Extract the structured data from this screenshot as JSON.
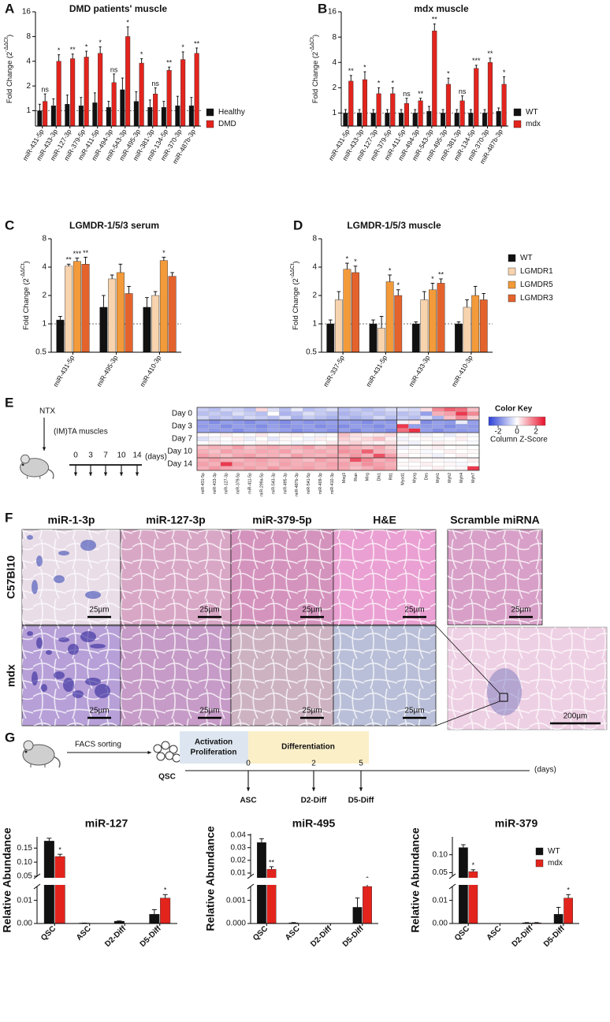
{
  "panel_letters": [
    "A",
    "B",
    "C",
    "D",
    "E",
    "F",
    "G"
  ],
  "chart_data": [
    {
      "type": "bar",
      "log": true,
      "title": "DMD patients' muscle",
      "y_label": [
        "Fold Change (2",
        "-ΔΔCt",
        ")"
      ],
      "categories": [
        "miR-431-5p",
        "miR-433-3p",
        "miR-127-3p",
        "miR-379-5p",
        "miR-411-5p",
        "miR-494-3p",
        "miR-543-3p",
        "miR-495-3p",
        "miR-381-3p",
        "miR-134-5p",
        "miR-370-3p",
        "miR-487b-3p"
      ],
      "ylim": [
        0.65,
        16
      ],
      "yticks": [
        1,
        2,
        4,
        8,
        16
      ],
      "reference_line": 1,
      "legend": true,
      "series": [
        {
          "name": "Healthy",
          "color": "#111111",
          "values": [
            1.0,
            1.15,
            1.2,
            1.15,
            1.25,
            1.1,
            1.8,
            1.3,
            1.1,
            1.1,
            1.15,
            1.15
          ],
          "errors": [
            0.2,
            0.25,
            0.35,
            0.3,
            0.4,
            0.2,
            0.7,
            0.4,
            0.25,
            0.2,
            0.35,
            0.3
          ]
        },
        {
          "name": "DMD",
          "color": "#e3241d",
          "values": [
            1.3,
            4.0,
            4.3,
            4.5,
            5.0,
            2.2,
            8.0,
            3.8,
            1.6,
            3.1,
            4.2,
            5.0
          ],
          "errors": [
            0.3,
            0.8,
            0.6,
            0.8,
            1.0,
            0.6,
            2.5,
            0.5,
            0.3,
            0.3,
            1.0,
            0.8
          ],
          "significance": [
            "ns",
            "*",
            "**",
            "*",
            "*",
            "ns",
            "*",
            "*",
            "ns",
            "**",
            "*",
            "**"
          ]
        }
      ]
    },
    {
      "type": "bar",
      "log": true,
      "title": "mdx muscle",
      "y_label": [
        "Fold Change (2",
        "-ΔΔCt",
        ")"
      ],
      "categories": [
        "miR-431-5p",
        "miR-433-3p",
        "miR-127-3p",
        "miR-379-5p",
        "miR-411-5p",
        "miR-494-3p",
        "miR-543-3p",
        "miR-495-3p",
        "miR-381-3p",
        "miR-134-5p",
        "miR-370-3p",
        "miR-487b-3p"
      ],
      "ylim": [
        0.7,
        16
      ],
      "yticks": [
        1,
        2,
        4,
        8,
        16
      ],
      "reference_line": 1,
      "legend": true,
      "series": [
        {
          "name": "WT",
          "color": "#111111",
          "values": [
            1,
            1,
            1,
            1,
            1,
            1,
            1.05,
            1,
            1,
            1,
            1,
            1.05
          ],
          "errors": [
            0.1,
            0.1,
            0.1,
            0.1,
            0.1,
            0.1,
            0.15,
            0.1,
            0.1,
            0.1,
            0.1,
            0.1
          ]
        },
        {
          "name": "mdx",
          "color": "#e3241d",
          "values": [
            2.4,
            2.5,
            1.7,
            1.7,
            1.3,
            1.4,
            9.5,
            2.2,
            1.4,
            3.4,
            4.0,
            2.2
          ],
          "errors": [
            0.4,
            0.6,
            0.3,
            0.3,
            0.2,
            0.1,
            2.0,
            0.4,
            0.2,
            0.3,
            0.5,
            0.5
          ],
          "significance": [
            "**",
            "*",
            "*",
            "*",
            "ns",
            "**",
            "**",
            "*",
            "ns",
            "***",
            "**",
            "*"
          ]
        }
      ]
    },
    {
      "type": "bar",
      "log": true,
      "title": "LGMDR-1/5/3 serum",
      "y_label": [
        "Fold Change (2",
        "-ΔΔCt",
        ")"
      ],
      "categories": [
        "miR-431-5p",
        "miR-495-3p",
        "miR-410-3p"
      ],
      "ylim": [
        0.5,
        8
      ],
      "yticks": [
        0.5,
        1,
        2,
        4,
        8
      ],
      "reference_line": 1,
      "legend": false,
      "series": [
        {
          "color": "#111111",
          "values": [
            1.1,
            1.5,
            1.5
          ],
          "errors": [
            0.1,
            0.5,
            0.4
          ]
        },
        {
          "color": "#f7d3ae",
          "values": [
            4.1,
            3.0,
            2.0
          ],
          "errors": [
            0.2,
            0.3,
            0.2
          ],
          "significance": [
            "**",
            null,
            null
          ]
        },
        {
          "color": "#f39a3a",
          "values": [
            4.6,
            3.5,
            4.7
          ],
          "errors": [
            0.4,
            0.8,
            0.4
          ],
          "significance": [
            "***",
            null,
            "*"
          ]
        },
        {
          "color": "#e4632c",
          "values": [
            4.3,
            2.1,
            3.2
          ],
          "errors": [
            0.8,
            0.4,
            0.3
          ],
          "significance": [
            "**",
            null,
            null
          ]
        }
      ]
    },
    {
      "type": "bar",
      "log": true,
      "title": "LGMDR-1/5/3 muscle",
      "y_label": [
        "Fold Change (2",
        "-ΔΔCt",
        ")"
      ],
      "categories": [
        "miR-337-5p",
        "miR-431-5p",
        "miR-433-3p",
        "miR-410-3p"
      ],
      "ylim": [
        0.5,
        8
      ],
      "yticks": [
        0.5,
        1,
        2,
        4,
        8
      ],
      "reference_line": 1,
      "legend": true,
      "series": [
        {
          "name": "WT",
          "color": "#111111",
          "values": [
            1,
            1,
            1,
            1
          ],
          "errors": [
            0.1,
            0.1,
            0.05,
            0.05
          ]
        },
        {
          "name": "LGMDR1",
          "color": "#f7d3ae",
          "values": [
            1.8,
            0.9,
            1.8,
            1.5
          ],
          "errors": [
            0.4,
            0.3,
            0.4,
            0.3
          ]
        },
        {
          "name": "LGMDR5",
          "color": "#f39a3a",
          "values": [
            3.8,
            2.8,
            2.3,
            2.0
          ],
          "errors": [
            0.6,
            0.5,
            0.4,
            0.5
          ],
          "significance": [
            "*",
            "*",
            "*",
            null
          ]
        },
        {
          "name": "LGMDR3",
          "color": "#e4632c",
          "values": [
            3.5,
            2.0,
            2.7,
            1.8
          ],
          "errors": [
            0.6,
            0.3,
            0.3,
            0.3
          ],
          "significance": [
            "*",
            "*",
            "**",
            null
          ]
        }
      ]
    },
    {
      "type": "heatmap",
      "row_groups": [
        "Day 0",
        "Day 3",
        "Day 7",
        "Day 10",
        "Day 14"
      ],
      "columns": [
        "miR-431-5p",
        "miR-433-3p",
        "miR-127-3p",
        "miR-379-5p",
        "miR-411-5p",
        "miR-299a-5p",
        "miR-543-3p",
        "miR-495-3p",
        "miR-487b-3p",
        "miR-541-5p",
        "miR-409-3p",
        "miR-410-3p",
        "Meg3",
        "Rian",
        "Mirg",
        "Dlk1",
        "Rtl1",
        "Myod1",
        "Myog",
        "Des",
        "Myh1",
        "Myh2",
        "Myh4",
        "Myh7"
      ],
      "clim": [
        -3,
        3
      ],
      "colorbar_ticks": [
        -2,
        0,
        2
      ],
      "legend_title": "Color Key",
      "legend_subtitle": "Column Z-Score",
      "values": [
        [
          -0.8,
          -1,
          -0.6,
          -0.7,
          -1,
          0.5,
          -0.5,
          -1,
          -0.3,
          -1,
          -0.8,
          -0.5,
          -1,
          -0.8,
          -1,
          -0.8,
          -0.5,
          -0.5,
          -0.6,
          0.4,
          1.5,
          2,
          1.8,
          0.8
        ],
        [
          -1,
          -0.8,
          -1,
          -0.5,
          -0.8,
          -1,
          0,
          -1.2,
          -1,
          -0.5,
          -0.8,
          -1,
          -1.2,
          -1,
          -0.8,
          -1,
          -0.8,
          -1,
          -0.8,
          -1.5,
          1,
          1.2,
          2.5,
          1.5
        ],
        [
          -0.6,
          -1,
          -0.8,
          -1,
          -0.6,
          -0.8,
          -1,
          -0.5,
          -1.2,
          -0.8,
          -1,
          -1.2,
          -1,
          -1.2,
          -1,
          -0.6,
          -1,
          -0.8,
          -1,
          -0.5,
          -1.2,
          0.8,
          1.5,
          0.6
        ],
        [
          -1.5,
          -1.8,
          -1.5,
          -1.6,
          -1.8,
          -1.5,
          -1.6,
          -1.8,
          -1.5,
          -1.7,
          -1.6,
          -1.5,
          -1.5,
          -1.6,
          -1.8,
          -1.5,
          -1.6,
          -0.2,
          0.3,
          -1.8,
          -1.5,
          -1.6,
          -0.3,
          -1.5
        ],
        [
          -1.6,
          -1.5,
          -1.8,
          -1.5,
          -1.6,
          -1.8,
          -1.5,
          -1.7,
          -1.6,
          -1.5,
          -1.8,
          -1.6,
          -1.8,
          -1.5,
          -1.6,
          -1.8,
          -1.5,
          2.5,
          -1.5,
          -1.6,
          -1.5,
          -1.8,
          -1.5,
          -1.6
        ],
        [
          -1.4,
          -1.6,
          -1.5,
          -1.8,
          -1.5,
          -1.6,
          -1.4,
          -1.5,
          -1.8,
          -1.6,
          -1.5,
          -1.7,
          -1.5,
          -1.8,
          -1.5,
          -1.6,
          -1.8,
          1.8,
          2.6,
          -1.5,
          -1.8,
          -1.5,
          -1.6,
          -1.5
        ],
        [
          0.1,
          0,
          0.2,
          0,
          -0.1,
          0.3,
          0,
          0.1,
          0.2,
          0,
          -0.2,
          0.1,
          0.8,
          0.4,
          0.2,
          0.3,
          0.5,
          0,
          0.2,
          -0.2,
          0,
          -0.3,
          0.1,
          -0.1
        ],
        [
          -0.5,
          -0.2,
          0,
          0.2,
          -0.3,
          0,
          -0.4,
          0.1,
          0,
          -0.2,
          0.2,
          0,
          0.6,
          0.3,
          0.5,
          0.8,
          0.2,
          -0.2,
          0,
          0.1,
          -0.1,
          0,
          0.2,
          0
        ],
        [
          0,
          0.2,
          -0.1,
          0.1,
          0,
          0.2,
          0.1,
          0,
          -0.2,
          0.1,
          0,
          0.3,
          0.4,
          0.6,
          0.3,
          0.2,
          0.4,
          0.1,
          -0.2,
          0,
          0.2,
          0.1,
          0,
          -0.1
        ],
        [
          0.8,
          1,
          0.9,
          1.2,
          0.8,
          1,
          1.1,
          0.9,
          1,
          1.2,
          0.8,
          1,
          1.2,
          1,
          0.8,
          1.1,
          0.6,
          -0.2,
          0,
          0.1,
          0.2,
          0,
          0.1,
          0
        ],
        [
          1,
          0.8,
          1.2,
          1,
          0.9,
          1.1,
          1,
          1.2,
          0.8,
          1,
          1.1,
          0.9,
          1.4,
          1.2,
          2,
          1,
          0.8,
          0,
          0.1,
          -0.1,
          0,
          0.2,
          0,
          0.1
        ],
        [
          1.2,
          1,
          0.8,
          1.1,
          1.2,
          0.9,
          1,
          0.8,
          1.2,
          1,
          0.9,
          1.1,
          1,
          1.3,
          1,
          2.2,
          1.2,
          0.2,
          0,
          0.1,
          -0.2,
          0,
          0.2,
          0
        ],
        [
          1,
          1.2,
          1,
          0.9,
          1.1,
          1.2,
          1,
          1.1,
          1,
          0.8,
          1.2,
          1,
          1,
          2.2,
          1.5,
          1,
          1.2,
          0,
          0.2,
          0,
          0.1,
          -0.1,
          0,
          0.2
        ],
        [
          1.2,
          1,
          2.5,
          1.2,
          1,
          1.1,
          0.9,
          1.2,
          1,
          1.1,
          1,
          1.2,
          1.2,
          1,
          1.4,
          1.2,
          1,
          0.1,
          0,
          0.2,
          0,
          0.1,
          -0.1,
          0
        ],
        [
          1,
          1.3,
          1.1,
          1,
          1.2,
          1,
          1.3,
          1,
          1.1,
          1.2,
          1,
          1.1,
          1.1,
          0.8,
          1,
          1.3,
          1.1,
          0,
          0.1,
          0,
          0.2,
          0,
          0.1,
          2.5
        ]
      ]
    },
    {
      "type": "broken-bar",
      "title": "miR-127",
      "y_label": "Relative Abundance",
      "categories": [
        "QSC",
        "ASC",
        "D2-Diff",
        "D5-Diff"
      ],
      "ylim_lower": [
        0,
        0.016
      ],
      "yticks_lower": [
        {
          "value": 0,
          "label": "0.00"
        },
        0.01
      ],
      "ylim_upper": [
        0.05,
        0.19
      ],
      "yticks_upper": [
        0.05,
        {
          "value": 0.1,
          "label": "0.10"
        },
        0.15
      ],
      "legend": false,
      "series": [
        {
          "color": "#111111",
          "values": [
            0.175,
            0.0002,
            0.001,
            0.004
          ],
          "errors": [
            0.01,
            0,
            0.0001,
            0.002
          ]
        },
        {
          "color": "#e3241d",
          "values": [
            0.12,
            0,
            0,
            0.011
          ],
          "errors": [
            0.008,
            0,
            0,
            0.0015
          ],
          "significance": [
            "*",
            null,
            null,
            "*"
          ]
        }
      ]
    },
    {
      "type": "broken-bar",
      "title": "miR-495",
      "y_label": "Relative Abundance",
      "categories": [
        "QSC",
        "ASC",
        "D2-Diff",
        "D5-Diff"
      ],
      "ylim_lower": [
        0,
        0.0016
      ],
      "yticks_lower": [
        {
          "value": 0,
          "label": "0.000"
        },
        0.001
      ],
      "ylim_upper": [
        0.0075,
        0.041
      ],
      "yticks_upper": [
        0.01,
        0.02,
        0.03,
        0.04
      ],
      "legend": false,
      "series": [
        {
          "color": "#111111",
          "values": [
            0.034,
            3e-05,
            0,
            0.0007
          ],
          "errors": [
            0.003,
            1e-05,
            0,
            0.0004
          ]
        },
        {
          "color": "#e3241d",
          "values": [
            0.013,
            0,
            0,
            0.0016
          ],
          "errors": [
            0.002,
            0,
            0,
            0.0002
          ],
          "significance": [
            "**",
            null,
            null,
            "*"
          ]
        }
      ]
    },
    {
      "type": "broken-bar",
      "title": "miR-379",
      "y_label": "Relative Abundance",
      "categories": [
        "QSC",
        "ASC",
        "D2-Diff",
        "D5-Diff"
      ],
      "ylim_lower": [
        0,
        0.016
      ],
      "yticks_lower": [
        {
          "value": 0,
          "label": "0.00"
        },
        0.01
      ],
      "ylim_upper": [
        0.04,
        0.15
      ],
      "yticks_upper": [
        0.05,
        {
          "value": 0.1,
          "label": "0.10"
        }
      ],
      "legend": true,
      "series": [
        {
          "name": "WT",
          "color": "#111111",
          "values": [
            0.12,
            0,
            0.0003,
            0.004
          ],
          "errors": [
            0.008,
            0,
            0.0001,
            0.003
          ]
        },
        {
          "name": "mdx",
          "color": "#e3241d",
          "values": [
            0.053,
            0,
            0.0003,
            0.011
          ],
          "errors": [
            0.005,
            0,
            0.0001,
            0.0015
          ],
          "significance": [
            "*",
            null,
            null,
            "*"
          ]
        }
      ]
    }
  ],
  "panel_e": {
    "treatment": "NTX",
    "target": "(IM)TA muscles",
    "timepoints": [
      0,
      3,
      7,
      10,
      14
    ],
    "unit": "(days)"
  },
  "panel_f": {
    "columns": [
      "miR-1-3p",
      "miR-127-3p",
      "miR-379-5p",
      "H&E",
      "Scramble miRNA"
    ],
    "rows": [
      "C57Bl10",
      "mdx"
    ],
    "scale_bar": "25µm",
    "inset_scale_bar": "200µm"
  },
  "panel_g": {
    "sorting": "FACS sorting",
    "source": "QSC",
    "activation": [
      "Activation",
      "Proliferation"
    ],
    "differentiation": "Differentiation",
    "timepoints": [
      0,
      2,
      5
    ],
    "unit": "(days)",
    "stages": [
      "ASC",
      "D2-Diff",
      "D5-Diff"
    ]
  }
}
